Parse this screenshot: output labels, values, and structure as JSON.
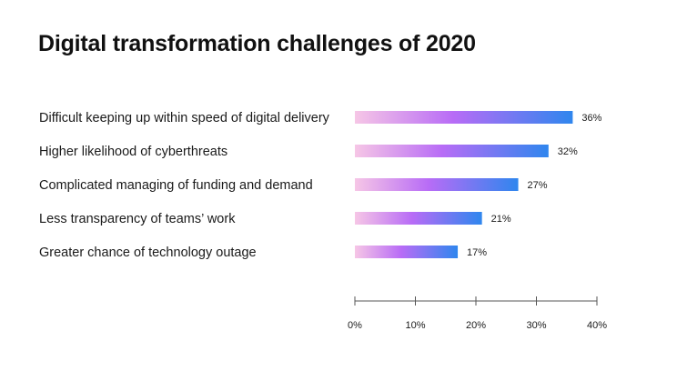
{
  "chart_data": {
    "type": "bar",
    "orientation": "horizontal",
    "title": "Digital transformation challenges of 2020",
    "categories": [
      "Difficult keeping up within speed of digital delivery",
      "Higher likelihood of cyberthreats",
      "Complicated managing of funding and demand",
      "Less transparency of teams’ work",
      "Greater chance of technology outage"
    ],
    "values": [
      36,
      32,
      27,
      21,
      17
    ],
    "value_labels": [
      "36%",
      "32%",
      "27%",
      "21%",
      "17%"
    ],
    "xlim": [
      0,
      40
    ],
    "x_ticks": [
      0,
      10,
      20,
      30,
      40
    ],
    "x_tick_labels": [
      "0%",
      "10%",
      "20%",
      "30%",
      "40%"
    ],
    "xlabel": "",
    "ylabel": "",
    "grid": false,
    "legend": "none",
    "colors": {
      "gradient_start": "#f6c6e6",
      "gradient_mid": "#b86cf6",
      "gradient_end": "#2f86ee",
      "axis": "#555555",
      "text": "#111111"
    }
  }
}
